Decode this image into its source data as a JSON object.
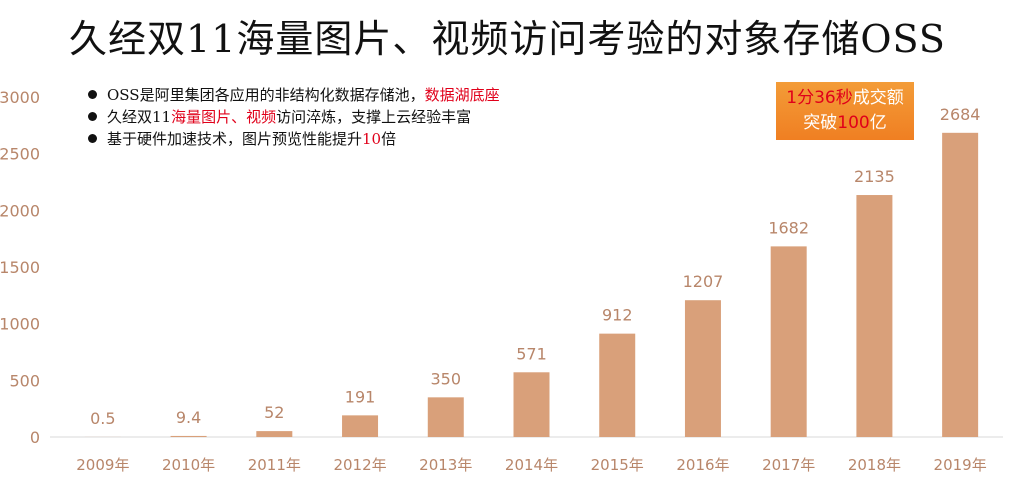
{
  "title": "久经双11海量图片、视频访问考验的对象存储OSS",
  "bullets": [
    {
      "parts": [
        {
          "text": "OSS是阿里集团各应用的非结构化数据存储池，",
          "highlight": false
        },
        {
          "text": "数据湖底座",
          "highlight": true
        }
      ]
    },
    {
      "parts": [
        {
          "text": "久经双11",
          "highlight": false
        },
        {
          "text": "海量图片、视频",
          "highlight": true
        },
        {
          "text": "访问淬炼，支撑上云经验丰富",
          "highlight": false
        }
      ]
    },
    {
      "parts": [
        {
          "text": "基于硬件加速技术，图片预览性能提升",
          "highlight": false
        },
        {
          "text": "10",
          "highlight": true
        },
        {
          "text": "倍",
          "highlight": false
        }
      ]
    }
  ],
  "callout": {
    "line1_highlight": "1分36秒",
    "line1_rest": "成交额",
    "line2_prefix": "突破",
    "line2_highlight": "100",
    "line2_suffix": "亿"
  },
  "colors": {
    "bar": "#d9a07a",
    "axis": "#d8d8d8",
    "label": "#b8866a",
    "highlight": "#e0001a",
    "callout": "#f28a2a"
  },
  "chart_data": {
    "type": "bar",
    "categories": [
      "2009年",
      "2010年",
      "2011年",
      "2012年",
      "2013年",
      "2014年",
      "2015年",
      "2016年",
      "2017年",
      "2018年",
      "2019年"
    ],
    "values": [
      0.5,
      9.4,
      52,
      191,
      350,
      571,
      912,
      1207,
      1682,
      2135,
      2684
    ],
    "value_labels": [
      "0.5",
      "9.4",
      "52",
      "191",
      "350",
      "571",
      "912",
      "1207",
      "1682",
      "2135",
      "2684"
    ],
    "yticks": [
      "0",
      "500",
      "1000",
      "1500",
      "2000",
      "2500",
      "3000"
    ],
    "ylim": [
      0,
      3000
    ],
    "title": "",
    "xlabel": "",
    "ylabel": "",
    "grid": false
  }
}
